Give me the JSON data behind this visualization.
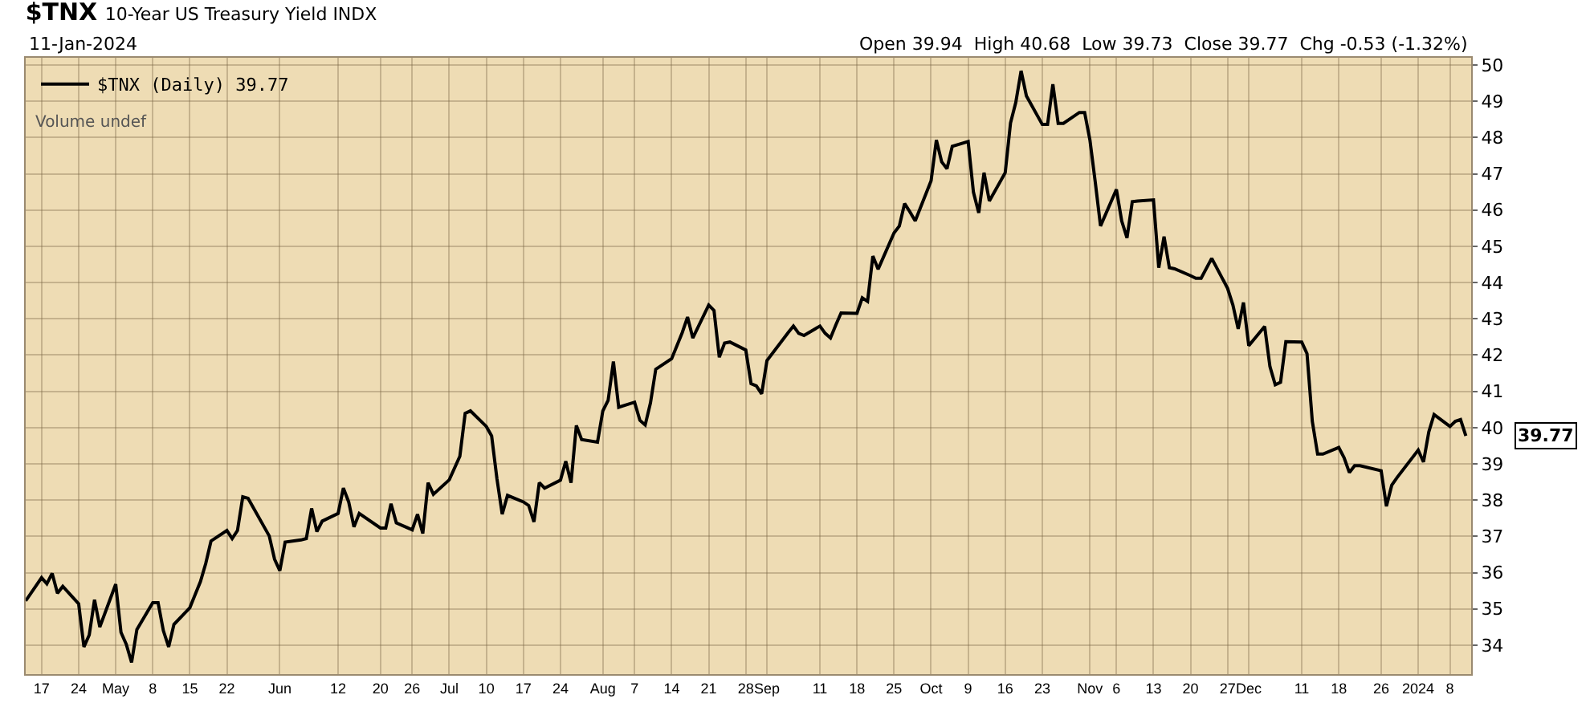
{
  "chart_data": {
    "type": "line",
    "title": "$TNX",
    "subtitle": "10-Year US Treasury Yield INDX",
    "annotations": [
      "11-Jan-2024",
      "Volume undef",
      "Open 39.94  High 40.68  Low 39.73  Close 39.77  Chg -0.53 (-1.32%)",
      {
        "text": "39.77",
        "x": "2024-01-11",
        "y": 39.77
      }
    ],
    "legend": "top left",
    "grid": true,
    "marker": "none",
    "line_style": "solid",
    "xlim": [
      "2023-04-14",
      "2024-01-12"
    ],
    "ylim": [
      33.2,
      50.2
    ],
    "yticks": [
      34,
      35,
      36,
      37,
      38,
      39,
      40,
      41,
      42,
      43,
      44,
      45,
      46,
      47,
      48,
      49,
      50
    ],
    "xticks": [
      {
        "value": "2023-04-17",
        "label": "17"
      },
      {
        "value": "2023-04-24",
        "label": "24"
      },
      {
        "value": "2023-05-01",
        "label": "May"
      },
      {
        "value": "2023-05-08",
        "label": "8"
      },
      {
        "value": "2023-05-15",
        "label": "15"
      },
      {
        "value": "2023-05-22",
        "label": "22"
      },
      {
        "value": "2023-06-01",
        "label": "Jun"
      },
      {
        "value": "2023-06-12",
        "label": "12"
      },
      {
        "value": "2023-06-20",
        "label": "20"
      },
      {
        "value": "2023-06-26",
        "label": "26"
      },
      {
        "value": "2023-07-03",
        "label": "Jul"
      },
      {
        "value": "2023-07-10",
        "label": "10"
      },
      {
        "value": "2023-07-17",
        "label": "17"
      },
      {
        "value": "2023-07-24",
        "label": "24"
      },
      {
        "value": "2023-08-01",
        "label": "Aug"
      },
      {
        "value": "2023-08-07",
        "label": "7"
      },
      {
        "value": "2023-08-14",
        "label": "14"
      },
      {
        "value": "2023-08-21",
        "label": "21"
      },
      {
        "value": "2023-08-28",
        "label": "28"
      },
      {
        "value": "2023-09-01",
        "label": "Sep"
      },
      {
        "value": "2023-09-11",
        "label": "11"
      },
      {
        "value": "2023-09-18",
        "label": "18"
      },
      {
        "value": "2023-09-25",
        "label": "25"
      },
      {
        "value": "2023-10-02",
        "label": "Oct"
      },
      {
        "value": "2023-10-09",
        "label": "9"
      },
      {
        "value": "2023-10-16",
        "label": "16"
      },
      {
        "value": "2023-10-23",
        "label": "23"
      },
      {
        "value": "2023-11-01",
        "label": "Nov"
      },
      {
        "value": "2023-11-06",
        "label": "6"
      },
      {
        "value": "2023-11-13",
        "label": "13"
      },
      {
        "value": "2023-11-20",
        "label": "20"
      },
      {
        "value": "2023-11-27",
        "label": "27"
      },
      {
        "value": "2023-12-01",
        "label": "Dec"
      },
      {
        "value": "2023-12-11",
        "label": "11"
      },
      {
        "value": "2023-12-18",
        "label": "18"
      },
      {
        "value": "2023-12-26",
        "label": "26"
      },
      {
        "value": "2024-01-02",
        "label": "2024"
      },
      {
        "value": "2024-01-08",
        "label": "8"
      }
    ],
    "series": [
      {
        "name": "$TNX (Daily) 39.77",
        "color": "#000000",
        "x": [
          "2023-04-14",
          "2023-04-17",
          "2023-04-18",
          "2023-04-19",
          "2023-04-20",
          "2023-04-21",
          "2023-04-24",
          "2023-04-25",
          "2023-04-26",
          "2023-04-27",
          "2023-04-28",
          "2023-05-01",
          "2023-05-02",
          "2023-05-03",
          "2023-05-04",
          "2023-05-05",
          "2023-05-08",
          "2023-05-09",
          "2023-05-10",
          "2023-05-11",
          "2023-05-12",
          "2023-05-15",
          "2023-05-16",
          "2023-05-17",
          "2023-05-18",
          "2023-05-19",
          "2023-05-22",
          "2023-05-23",
          "2023-05-24",
          "2023-05-25",
          "2023-05-26",
          "2023-05-30",
          "2023-05-31",
          "2023-06-01",
          "2023-06-02",
          "2023-06-05",
          "2023-06-06",
          "2023-06-07",
          "2023-06-08",
          "2023-06-09",
          "2023-06-12",
          "2023-06-13",
          "2023-06-14",
          "2023-06-15",
          "2023-06-16",
          "2023-06-20",
          "2023-06-21",
          "2023-06-22",
          "2023-06-23",
          "2023-06-26",
          "2023-06-27",
          "2023-06-28",
          "2023-06-29",
          "2023-06-30",
          "2023-07-03",
          "2023-07-05",
          "2023-07-06",
          "2023-07-07",
          "2023-07-10",
          "2023-07-11",
          "2023-07-12",
          "2023-07-13",
          "2023-07-14",
          "2023-07-17",
          "2023-07-18",
          "2023-07-19",
          "2023-07-20",
          "2023-07-21",
          "2023-07-24",
          "2023-07-25",
          "2023-07-26",
          "2023-07-27",
          "2023-07-28",
          "2023-07-31",
          "2023-08-01",
          "2023-08-02",
          "2023-08-03",
          "2023-08-04",
          "2023-08-07",
          "2023-08-08",
          "2023-08-09",
          "2023-08-10",
          "2023-08-11",
          "2023-08-14",
          "2023-08-15",
          "2023-08-16",
          "2023-08-17",
          "2023-08-18",
          "2023-08-21",
          "2023-08-22",
          "2023-08-23",
          "2023-08-24",
          "2023-08-25",
          "2023-08-28",
          "2023-08-29",
          "2023-08-30",
          "2023-08-31",
          "2023-09-01",
          "2023-09-05",
          "2023-09-06",
          "2023-09-07",
          "2023-09-08",
          "2023-09-11",
          "2023-09-12",
          "2023-09-13",
          "2023-09-14",
          "2023-09-15",
          "2023-09-18",
          "2023-09-19",
          "2023-09-20",
          "2023-09-21",
          "2023-09-22",
          "2023-09-25",
          "2023-09-26",
          "2023-09-27",
          "2023-09-28",
          "2023-09-29",
          "2023-10-02",
          "2023-10-03",
          "2023-10-04",
          "2023-10-05",
          "2023-10-06",
          "2023-10-09",
          "2023-10-10",
          "2023-10-11",
          "2023-10-12",
          "2023-10-13",
          "2023-10-16",
          "2023-10-17",
          "2023-10-18",
          "2023-10-19",
          "2023-10-20",
          "2023-10-23",
          "2023-10-24",
          "2023-10-25",
          "2023-10-26",
          "2023-10-27",
          "2023-10-30",
          "2023-10-31",
          "2023-11-01",
          "2023-11-02",
          "2023-11-03",
          "2023-11-06",
          "2023-11-07",
          "2023-11-08",
          "2023-11-09",
          "2023-11-10",
          "2023-11-13",
          "2023-11-14",
          "2023-11-15",
          "2023-11-16",
          "2023-11-17",
          "2023-11-20",
          "2023-11-21",
          "2023-11-22",
          "2023-11-24",
          "2023-11-27",
          "2023-11-28",
          "2023-11-29",
          "2023-11-30",
          "2023-12-01",
          "2023-12-04",
          "2023-12-05",
          "2023-12-06",
          "2023-12-07",
          "2023-12-08",
          "2023-12-11",
          "2023-12-12",
          "2023-12-13",
          "2023-12-14",
          "2023-12-15",
          "2023-12-18",
          "2023-12-19",
          "2023-12-20",
          "2023-12-21",
          "2023-12-22",
          "2023-12-26",
          "2023-12-27",
          "2023-12-28",
          "2023-12-29",
          "2024-01-02",
          "2024-01-03",
          "2024-01-04",
          "2024-01-05",
          "2024-01-08",
          "2024-01-09",
          "2024-01-10",
          "2024-01-11"
        ],
        "values": [
          35.22,
          35.86,
          35.69,
          35.98,
          35.43,
          35.62,
          35.14,
          33.95,
          34.28,
          35.25,
          34.5,
          35.68,
          34.35,
          34.02,
          33.52,
          34.43,
          35.17,
          35.17,
          34.4,
          33.95,
          34.57,
          35.03,
          35.39,
          35.75,
          36.25,
          36.87,
          37.16,
          36.94,
          37.16,
          38.09,
          38.05,
          37.01,
          36.37,
          36.05,
          36.84,
          36.9,
          36.94,
          37.77,
          37.13,
          37.42,
          37.63,
          38.33,
          37.95,
          37.26,
          37.63,
          37.23,
          37.23,
          37.9,
          37.37,
          37.18,
          37.61,
          37.08,
          38.48,
          38.16,
          38.56,
          39.21,
          40.39,
          40.46,
          40.03,
          39.77,
          38.59,
          37.61,
          38.13,
          37.95,
          37.85,
          37.4,
          38.48,
          38.33,
          38.55,
          39.07,
          38.48,
          40.06,
          39.67,
          39.6,
          40.46,
          40.75,
          41.82,
          40.56,
          40.7,
          40.2,
          40.07,
          40.68,
          41.61,
          41.9,
          42.26,
          42.62,
          43.05,
          42.47,
          43.38,
          43.23,
          41.94,
          42.33,
          42.36,
          42.14,
          41.21,
          41.15,
          40.93,
          41.85,
          42.62,
          42.8,
          42.6,
          42.54,
          42.8,
          42.6,
          42.47,
          42.83,
          43.16,
          43.15,
          43.58,
          43.48,
          44.73,
          44.37,
          45.37,
          45.56,
          46.18,
          45.95,
          45.7,
          46.81,
          47.93,
          47.33,
          47.14,
          47.76,
          47.89,
          46.49,
          45.92,
          47.03,
          46.25,
          47.03,
          48.4,
          48.97,
          49.84,
          49.15,
          48.36,
          48.36,
          49.47,
          48.39,
          48.39,
          48.69,
          48.69,
          47.93,
          46.78,
          45.56,
          46.57,
          45.7,
          45.23,
          46.23,
          46.25,
          46.28,
          44.41,
          45.27,
          44.41,
          44.38,
          44.19,
          44.12,
          44.12,
          44.67,
          43.84,
          43.38,
          42.72,
          43.45,
          42.26,
          42.79,
          41.68,
          41.18,
          41.25,
          42.37,
          42.36,
          42.04,
          40.17,
          39.27,
          39.27,
          39.45,
          39.17,
          38.76,
          38.95,
          38.95,
          38.81,
          37.83,
          38.41,
          38.62,
          39.38,
          39.05,
          39.88,
          40.36,
          40.03,
          40.17,
          40.22,
          39.77
        ]
      }
    ]
  }
}
